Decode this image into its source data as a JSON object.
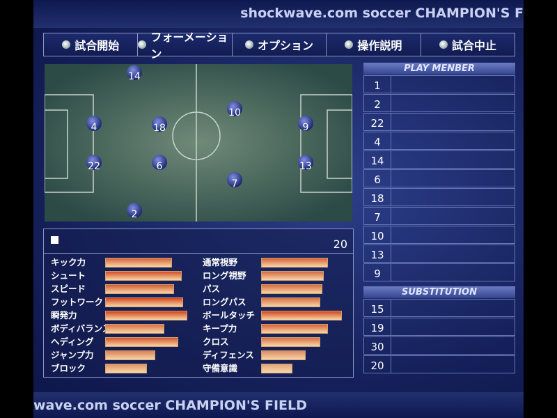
{
  "header": {
    "title": "shockwave.com soccer CHAMPION'S F"
  },
  "menu": [
    "試合開始",
    "フォーメーション",
    "オプション",
    "操作説明",
    "試合中止"
  ],
  "field": {
    "players": [
      14,
      10,
      4,
      18,
      9,
      22,
      6,
      13,
      7,
      2
    ]
  },
  "stats": {
    "number": 20,
    "left": [
      {
        "label": "キック力",
        "value": 78
      },
      {
        "label": "シュート",
        "value": 90
      },
      {
        "label": "スピード",
        "value": 81
      },
      {
        "label": "フットワーク",
        "value": 92
      },
      {
        "label": "瞬発力",
        "value": 97
      },
      {
        "label": "ボディバランス",
        "value": 69
      },
      {
        "label": "ヘディング",
        "value": 86
      },
      {
        "label": "ジャンプ力",
        "value": 58
      },
      {
        "label": "ブロック",
        "value": 48
      }
    ],
    "right": [
      {
        "label": "通常視野",
        "value": 78
      },
      {
        "label": "ロング視野",
        "value": 73
      },
      {
        "label": "パス",
        "value": 72
      },
      {
        "label": "ロングパス",
        "value": 69
      },
      {
        "label": "ボールタッチ",
        "value": 95
      },
      {
        "label": "キープ力",
        "value": 78
      },
      {
        "label": "クロス",
        "value": 69
      },
      {
        "label": "ディフェンス",
        "value": 52
      },
      {
        "label": "守備意識",
        "value": 36
      }
    ]
  },
  "members": {
    "title": "PLAY MENBER",
    "numbers": [
      1,
      2,
      22,
      4,
      14,
      6,
      18,
      7,
      10,
      13,
      9
    ]
  },
  "substitution": {
    "title": "SUBSTITUTION",
    "numbers": [
      15,
      19,
      30,
      20
    ]
  },
  "footer": {
    "title": "wave.com soccer CHAMPION'S FIELD"
  }
}
